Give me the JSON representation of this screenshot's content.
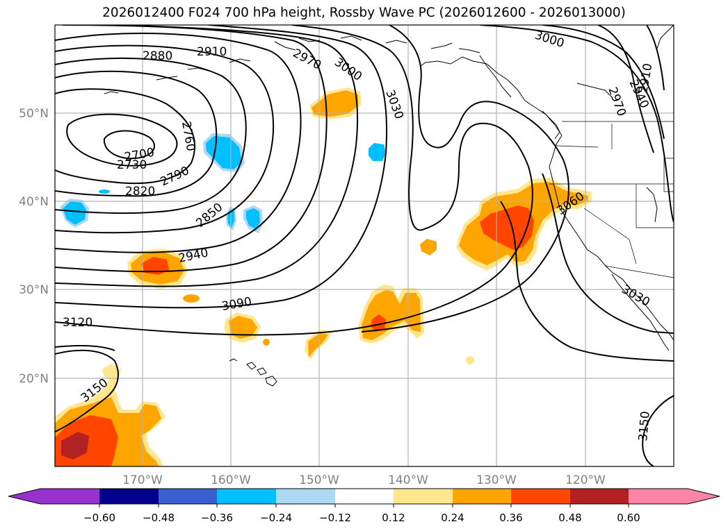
{
  "title": "2026012400 F024 700 hPa height, Rossby Wave PC (2026012600 - 2026013000)",
  "lat_labels": [
    "50°N",
    "40°N",
    "30°N",
    "20°N"
  ],
  "lon_labels": [
    "170°W",
    "160°W",
    "150°W",
    "140°W",
    "130°W",
    "120°W"
  ],
  "contour_labels": [
    "2880",
    "2910",
    "2970",
    "3000",
    "3030",
    "3000",
    "2940",
    "2910",
    "2970",
    "2760",
    "2700",
    "2730",
    "2790",
    "2820",
    "2850",
    "2940",
    "3090",
    "3120",
    "3150",
    "3060",
    "3030",
    "3150"
  ],
  "colorbar": {
    "ticks": [
      "−0.60",
      "−0.48",
      "−0.36",
      "−0.24",
      "−0.12",
      "0.12",
      "0.24",
      "0.36",
      "0.48",
      "0.60"
    ],
    "colors": [
      "#9932cc",
      "#00008b",
      "#3a5fcd",
      "#00bfff",
      "#add8f6",
      "#ffffff",
      "#ffe68f",
      "#ffa500",
      "#ff4500",
      "#b22222",
      "#ff85a6"
    ]
  },
  "colors": {
    "neg_strong": "#00bfff",
    "neg_weak": "#add8f6",
    "pos_weak": "#ffe68f",
    "pos_mid": "#ffa500",
    "pos_strong": "#ff4500",
    "pos_max": "#b22222"
  }
}
